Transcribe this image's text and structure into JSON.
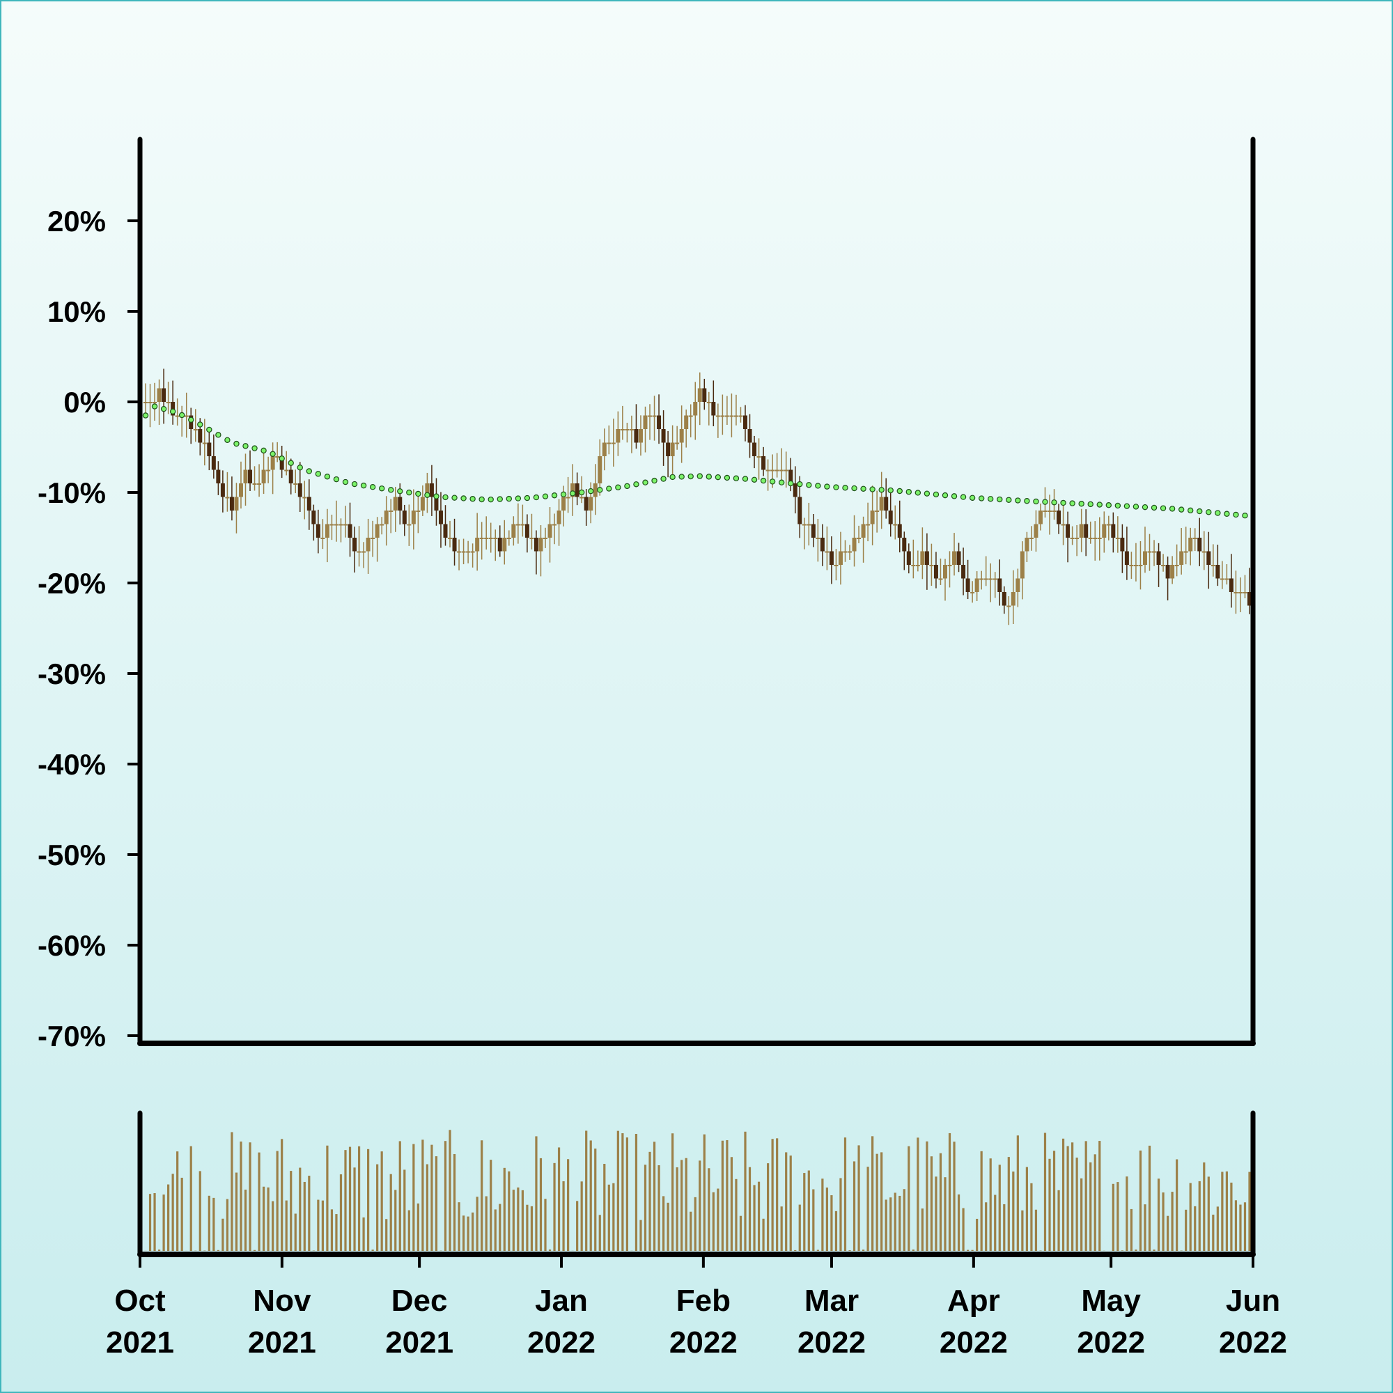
{
  "colors": {
    "background_top": "#f5fcfb",
    "background_bottom": "#c9edee",
    "border": "#3fb6bc",
    "axis": "#000000",
    "up_bar": "#9c8048",
    "down_bar": "#4a2a10",
    "volume_bar": "#9c8048",
    "moving_average_fill": "#7cf36a",
    "moving_average_stroke": "#1f4f1a"
  },
  "chart_data": {
    "type": "candlestick",
    "price_axis": {
      "unit": "percent change",
      "ylim": [
        -70,
        28
      ],
      "ticks": [
        20,
        10,
        0,
        -10,
        -20,
        -30,
        -40,
        -50,
        -60,
        -70
      ],
      "tick_labels": [
        "20%",
        "10%",
        "0%",
        "-10%",
        "-20%",
        "-30%",
        "-40%",
        "-50%",
        "-60%",
        "-70%"
      ]
    },
    "time_axis": {
      "start": "2021-10-01",
      "end": "2022-06-01",
      "ticks": [
        "2021-10-01",
        "2021-11-01",
        "2021-12-01",
        "2022-01-01",
        "2022-02-01",
        "2022-03-01",
        "2022-04-01",
        "2022-05-01",
        "2022-06-01"
      ],
      "tick_labels": [
        [
          "Oct",
          "2021"
        ],
        [
          "Nov",
          "2021"
        ],
        [
          "Dec",
          "2021"
        ],
        [
          "Jan",
          "2022"
        ],
        [
          "Feb",
          "2022"
        ],
        [
          "Mar",
          "2022"
        ],
        [
          "Apr",
          "2022"
        ],
        [
          "May",
          "2022"
        ],
        [
          "Jun",
          "2022"
        ]
      ]
    },
    "close_path": [
      [
        "2021-10-01",
        0
      ],
      [
        "2021-10-04",
        1
      ],
      [
        "2021-10-07",
        -1
      ],
      [
        "2021-10-10",
        -2
      ],
      [
        "2021-10-13",
        -4
      ],
      [
        "2021-10-17",
        -9
      ],
      [
        "2021-10-20",
        -12
      ],
      [
        "2021-10-23",
        -8
      ],
      [
        "2021-10-26",
        -9
      ],
      [
        "2021-10-29",
        -6
      ],
      [
        "2021-11-02",
        -9
      ],
      [
        "2021-11-05",
        -11
      ],
      [
        "2021-11-08",
        -15
      ],
      [
        "2021-11-11",
        -13
      ],
      [
        "2021-11-14",
        -14
      ],
      [
        "2021-11-17",
        -17
      ],
      [
        "2021-11-21",
        -14
      ],
      [
        "2021-11-25",
        -11
      ],
      [
        "2021-11-28",
        -14
      ],
      [
        "2021-12-02",
        -9
      ],
      [
        "2021-12-06",
        -15
      ],
      [
        "2021-12-10",
        -17
      ],
      [
        "2021-12-14",
        -15
      ],
      [
        "2021-12-18",
        -16
      ],
      [
        "2021-12-22",
        -13
      ],
      [
        "2021-12-26",
        -16
      ],
      [
        "2021-12-31",
        -12
      ],
      [
        "2022-01-03",
        -9
      ],
      [
        "2022-01-06",
        -12
      ],
      [
        "2022-01-10",
        -5
      ],
      [
        "2022-01-14",
        -3
      ],
      [
        "2022-01-17",
        -4
      ],
      [
        "2022-01-20",
        -1
      ],
      [
        "2022-01-24",
        -6
      ],
      [
        "2022-01-27",
        -3
      ],
      [
        "2022-01-31",
        1
      ],
      [
        "2022-02-04",
        -2
      ],
      [
        "2022-02-08",
        -1
      ],
      [
        "2022-02-12",
        -6
      ],
      [
        "2022-02-15",
        -8
      ],
      [
        "2022-02-19",
        -7
      ],
      [
        "2022-02-22",
        -13
      ],
      [
        "2022-02-26",
        -15
      ],
      [
        "2022-03-01",
        -18
      ],
      [
        "2022-03-05",
        -16
      ],
      [
        "2022-03-08",
        -14
      ],
      [
        "2022-03-12",
        -11
      ],
      [
        "2022-03-15",
        -14
      ],
      [
        "2022-03-18",
        -18
      ],
      [
        "2022-03-21",
        -17
      ],
      [
        "2022-03-25",
        -20
      ],
      [
        "2022-03-28",
        -16
      ],
      [
        "2022-03-31",
        -21
      ],
      [
        "2022-04-03",
        -19
      ],
      [
        "2022-04-06",
        -20
      ],
      [
        "2022-04-09",
        -23
      ],
      [
        "2022-04-12",
        -17
      ],
      [
        "2022-04-15",
        -13
      ],
      [
        "2022-04-18",
        -12
      ],
      [
        "2022-04-22",
        -15
      ],
      [
        "2022-04-25",
        -14
      ],
      [
        "2022-04-28",
        -15
      ],
      [
        "2022-05-01",
        -13
      ],
      [
        "2022-05-04",
        -17
      ],
      [
        "2022-05-07",
        -18
      ],
      [
        "2022-05-10",
        -16
      ],
      [
        "2022-05-14",
        -19
      ],
      [
        "2022-05-17",
        -17
      ],
      [
        "2022-05-20",
        -15
      ],
      [
        "2022-05-23",
        -18
      ],
      [
        "2022-05-27",
        -20
      ],
      [
        "2022-06-01",
        -22
      ]
    ],
    "moving_average": [
      [
        "2021-10-01",
        -1.5
      ],
      [
        "2021-10-03",
        -0.5
      ],
      [
        "2021-10-08",
        -1.2
      ],
      [
        "2021-10-13",
        -2.5
      ],
      [
        "2021-10-20",
        -4.5
      ],
      [
        "2021-10-28",
        -5.5
      ],
      [
        "2021-11-05",
        -7.5
      ],
      [
        "2021-11-15",
        -9
      ],
      [
        "2021-11-25",
        -9.8
      ],
      [
        "2021-12-05",
        -10.5
      ],
      [
        "2021-12-15",
        -10.8
      ],
      [
        "2021-12-25",
        -10.6
      ],
      [
        "2022-01-05",
        -10
      ],
      [
        "2022-01-15",
        -9.3
      ],
      [
        "2022-01-25",
        -8.3
      ],
      [
        "2022-01-31",
        -8.2
      ],
      [
        "2022-02-10",
        -8.5
      ],
      [
        "2022-02-20",
        -9
      ],
      [
        "2022-03-01",
        -9.4
      ],
      [
        "2022-03-15",
        -9.8
      ],
      [
        "2022-04-01",
        -10.6
      ],
      [
        "2022-04-15",
        -11
      ],
      [
        "2022-05-01",
        -11.4
      ],
      [
        "2022-05-15",
        -11.8
      ],
      [
        "2022-06-01",
        -12.6
      ]
    ],
    "volume": {
      "unit": "relative",
      "note": "no axis labels shown",
      "range": [
        0,
        1
      ]
    }
  }
}
